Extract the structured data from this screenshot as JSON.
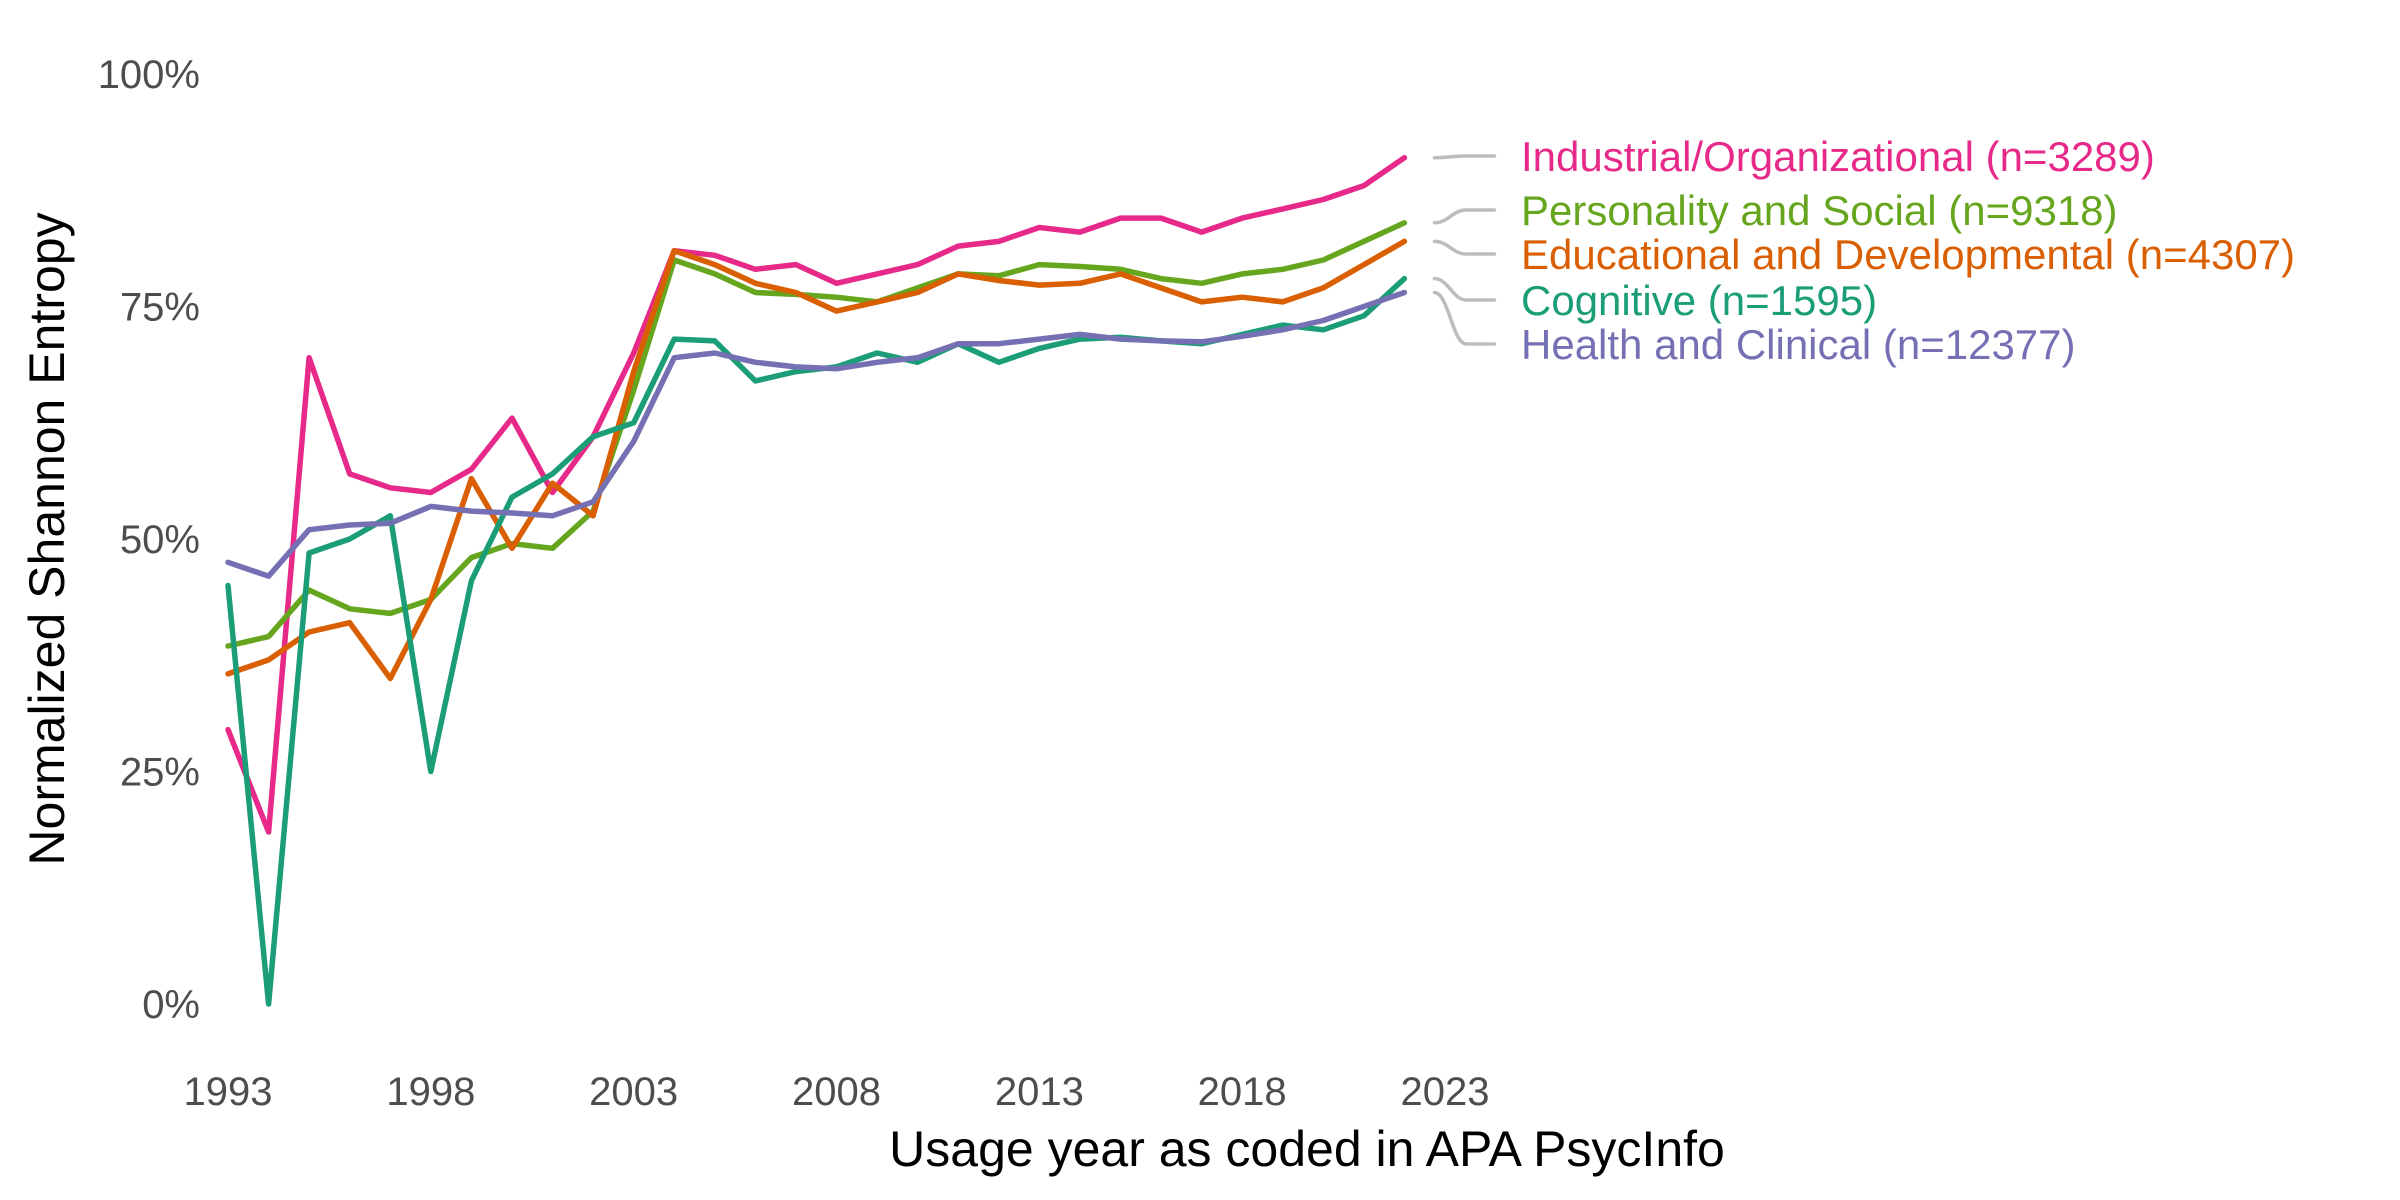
{
  "chart_data": {
    "type": "line",
    "xlabel": "Usage year as coded in APA PsycInfo",
    "ylabel": "Normalized Shannon Entropy",
    "xlim": [
      1993,
      2023
    ],
    "ylim": [
      0,
      100
    ],
    "x_ticks": [
      "1993",
      "1998",
      "2003",
      "2008",
      "2013",
      "2018",
      "2023"
    ],
    "y_ticks": [
      "0%",
      "25%",
      "50%",
      "75%",
      "100%"
    ],
    "grid": false,
    "legend_position": "right, labels at line ends",
    "x": [
      1993,
      1994,
      1995,
      1996,
      1997,
      1998,
      1999,
      2000,
      2001,
      2002,
      2003,
      2004,
      2005,
      2006,
      2007,
      2008,
      2009,
      2010,
      2011,
      2012,
      2013,
      2014,
      2015,
      2016,
      2017,
      2018,
      2019,
      2020,
      2021,
      2022
    ],
    "series": [
      {
        "name": "Industrial/Organizational (n=3289)",
        "color": "#e7298a",
        "values": [
          29.5,
          18.5,
          69.5,
          57,
          55.5,
          55,
          57.5,
          63,
          55,
          61,
          70,
          81,
          80.5,
          79,
          79.5,
          77.5,
          78.5,
          79.5,
          81.5,
          82,
          83.5,
          83,
          84.5,
          84.5,
          83,
          84.5,
          85.5,
          86.5,
          88,
          91
        ]
      },
      {
        "name": "Personality and Social (n=9318)",
        "color": "#66a61e",
        "values": [
          38.5,
          39.5,
          44.5,
          42.5,
          42,
          43.5,
          48,
          49.5,
          49,
          53,
          66,
          80,
          78.5,
          76.5,
          76.3,
          76,
          75.5,
          77,
          78.5,
          78.3,
          79.5,
          79.3,
          79,
          78,
          77.5,
          78.5,
          79,
          80,
          82,
          84
        ]
      },
      {
        "name": "Educational and Developmental (n=4307)",
        "color": "#d95f02",
        "values": [
          35.5,
          37,
          40,
          41,
          35,
          43.5,
          56.5,
          49,
          56,
          52.5,
          68,
          81,
          79.5,
          77.5,
          76.5,
          74.5,
          75.5,
          76.5,
          78.5,
          77.8,
          77.3,
          77.5,
          78.5,
          77,
          75.5,
          76,
          75.5,
          77,
          79.5,
          82
        ]
      },
      {
        "name": "Cognitive (n=1595)",
        "color": "#1b9e77",
        "values": [
          45,
          0,
          48.5,
          50,
          52.5,
          25,
          45.5,
          54.5,
          57,
          61,
          62.5,
          71.5,
          71.3,
          67,
          68,
          68.5,
          70,
          69,
          71,
          69,
          70.5,
          71.5,
          71.7,
          71.3,
          71,
          72,
          73,
          72.5,
          74,
          78
        ]
      },
      {
        "name": "Health and Clinical (n=12377)",
        "color": "#7570b3",
        "values": [
          47.5,
          46,
          51,
          51.5,
          51.7,
          53.5,
          53,
          52.8,
          52.5,
          54,
          60.5,
          69.5,
          70,
          69,
          68.5,
          68.3,
          69,
          69.5,
          71,
          71,
          71.5,
          72,
          71.5,
          71.3,
          71.2,
          71.8,
          72.5,
          73.5,
          75,
          76.5
        ]
      }
    ]
  }
}
